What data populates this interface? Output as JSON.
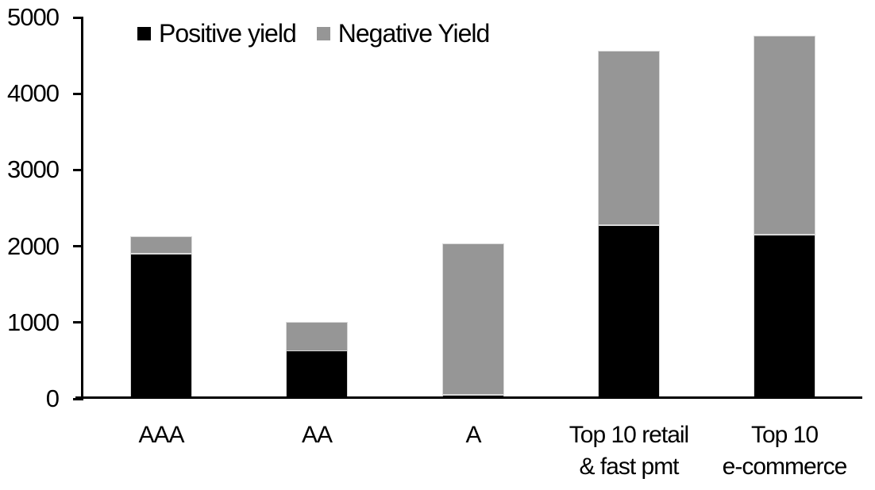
{
  "chart_data": {
    "type": "bar",
    "stacked": true,
    "title": "",
    "categories": [
      "AAA",
      "AA",
      "A",
      "Top 10 retail\n& fast pmt",
      "Top 10\ne-commerce"
    ],
    "series": [
      {
        "name": "Positive yield",
        "color": "#000000",
        "values": [
          1900,
          630,
          50,
          2280,
          2150
        ]
      },
      {
        "name": "Negative Yield",
        "color": "#969696",
        "values": [
          230,
          380,
          1990,
          2285,
          2610
        ]
      }
    ],
    "totals": [
      2130,
      1010,
      2040,
      4565,
      4760
    ],
    "xlabel": "",
    "ylabel": "",
    "ylim": [
      0,
      5000
    ],
    "yticks": [
      0,
      1000,
      2000,
      3000,
      4000,
      5000
    ],
    "legend_position": "top-left",
    "grid": false,
    "axis_color": "#000000",
    "background_color": "#ffffff",
    "segment_border_color": "#d9d9d9"
  }
}
